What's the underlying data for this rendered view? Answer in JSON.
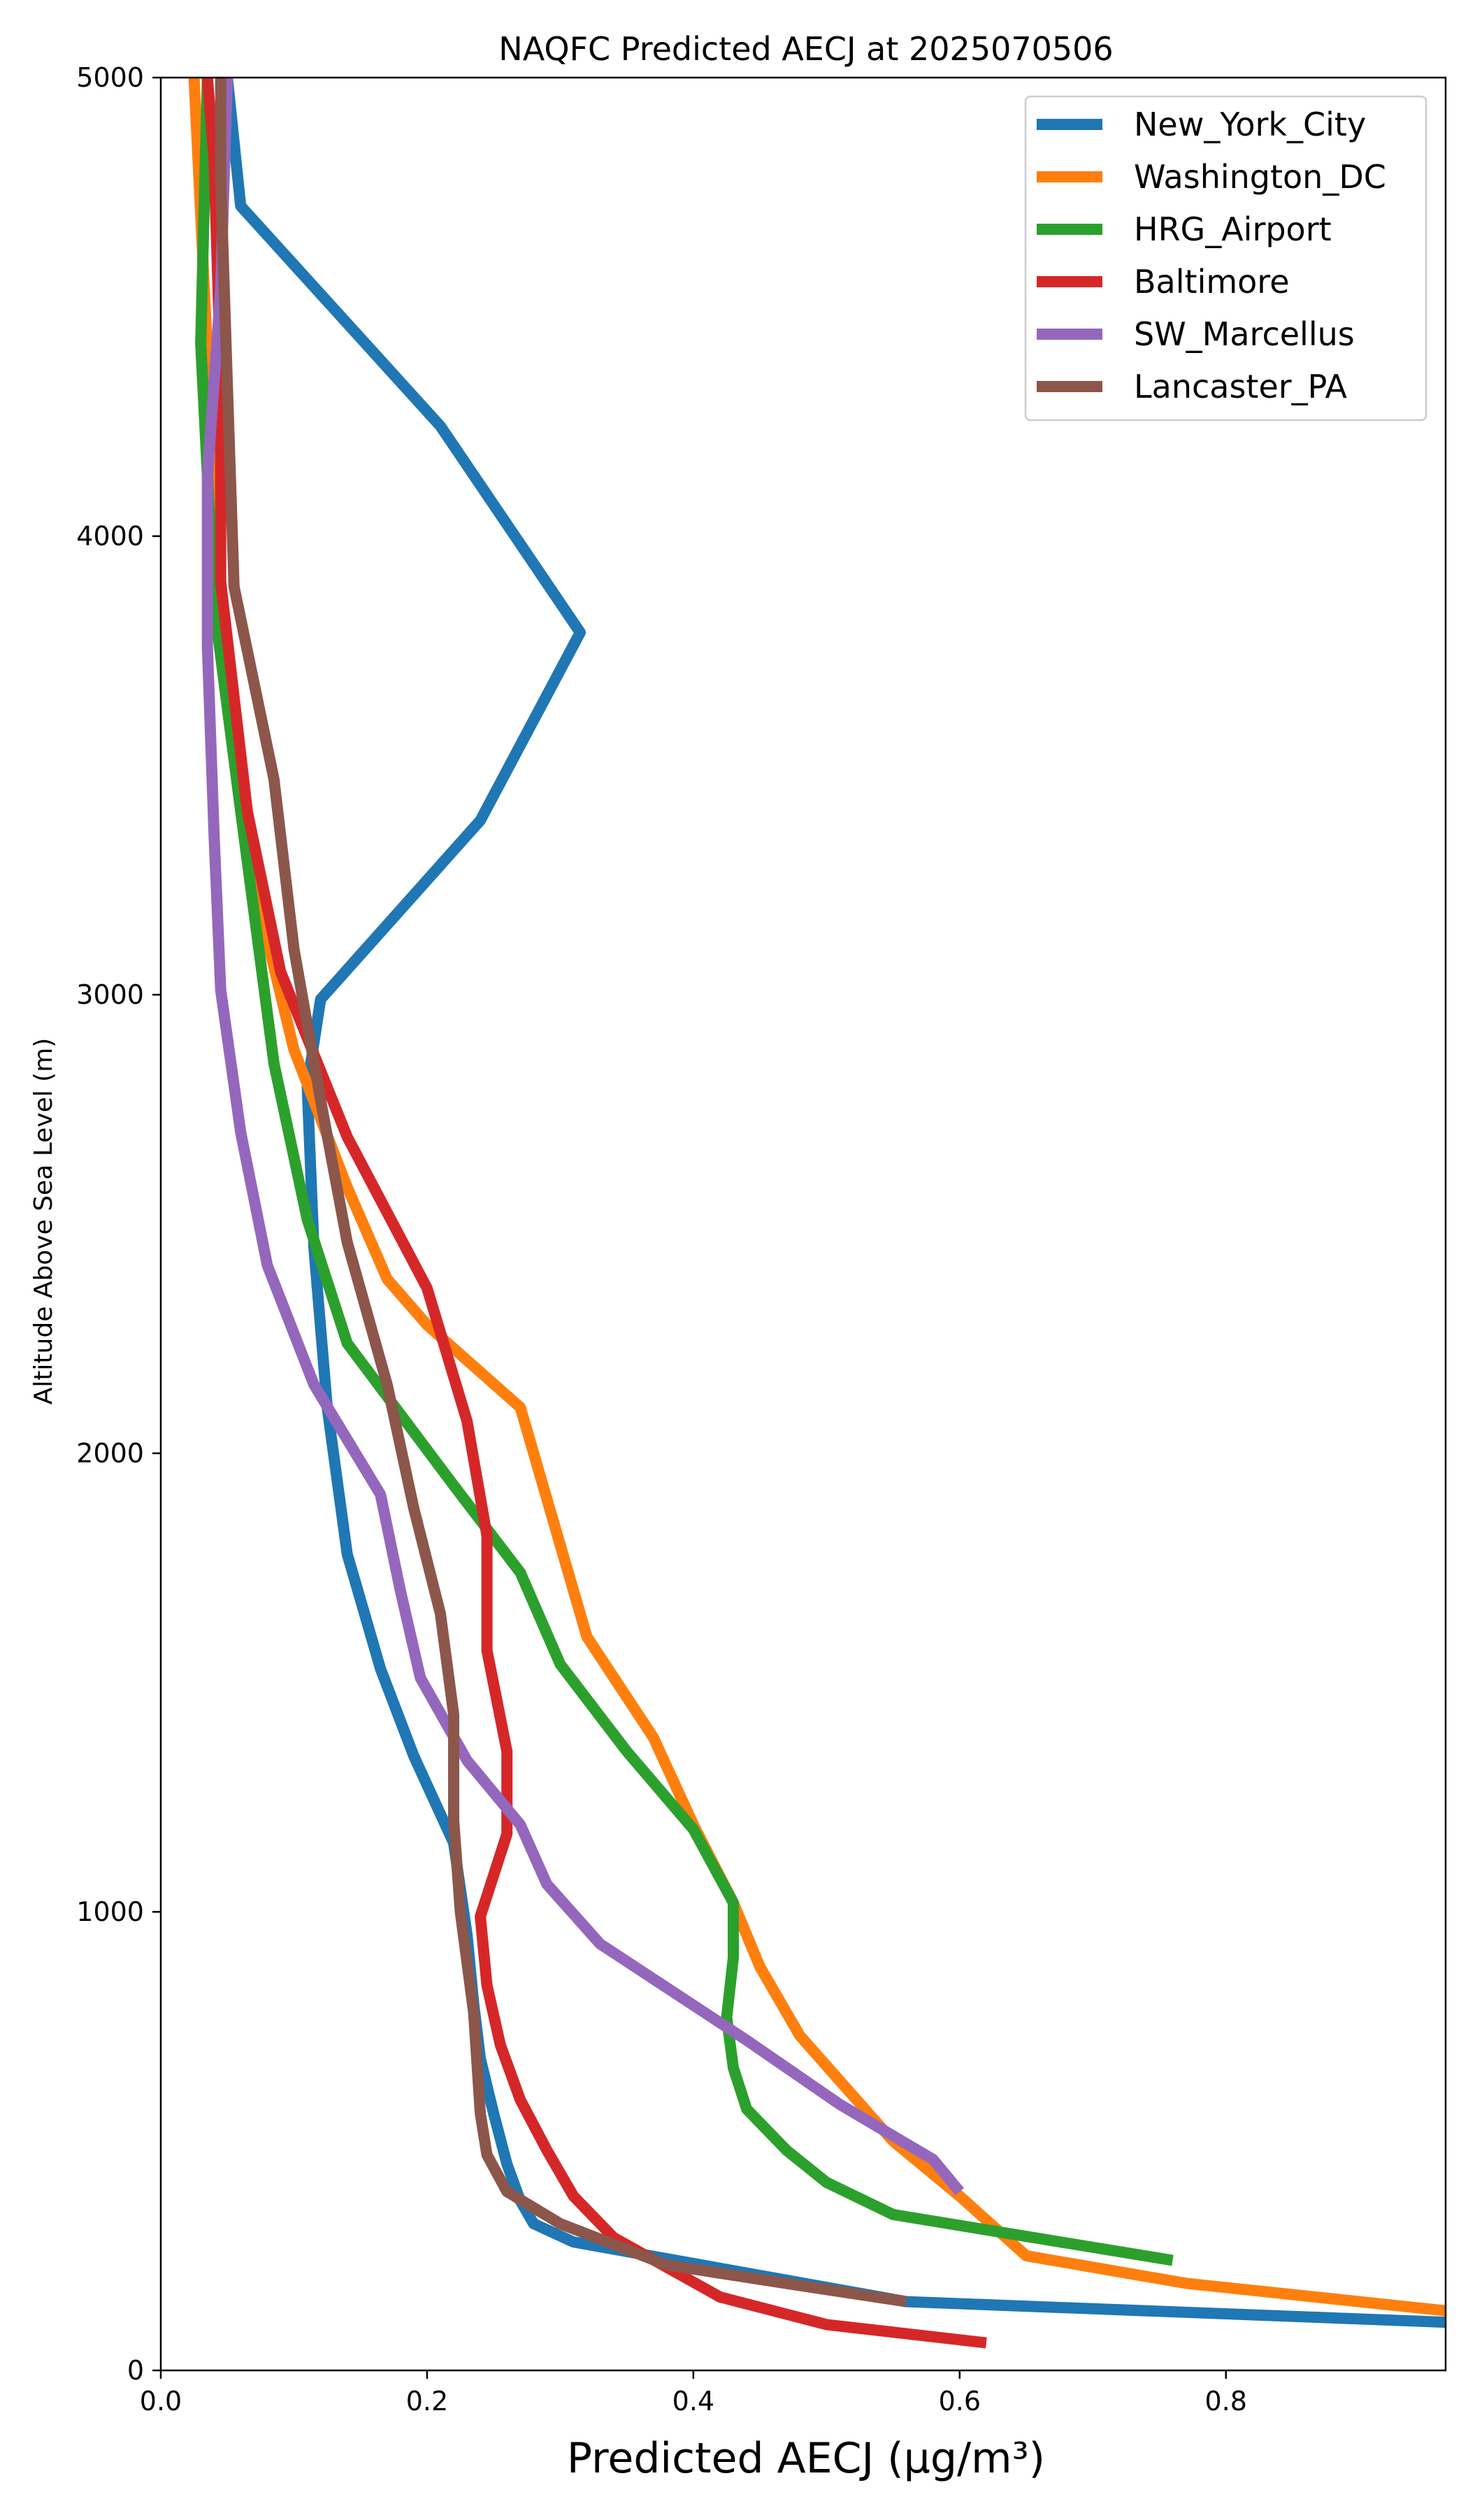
{
  "chart_data": {
    "type": "line",
    "title": "NAQFC Predicted AECJ at 2025070506",
    "xlabel": "Predicted AECJ (μg/m³)",
    "ylabel": "Altitude Above Sea Level (m)",
    "xlim": [
      0.0,
      0.965
    ],
    "ylim": [
      0,
      5000
    ],
    "x_ticks": [
      "0.0",
      "0.2",
      "0.4",
      "0.6",
      "0.8"
    ],
    "y_ticks": [
      "0",
      "1000",
      "2000",
      "3000",
      "4000",
      "5000"
    ],
    "grid": false,
    "legend_position": "top-right",
    "series": [
      {
        "name": "New_York_City",
        "color": "#1f77b4",
        "points": [
          [
            0.965,
            105
          ],
          [
            0.56,
            150
          ],
          [
            0.31,
            280
          ],
          [
            0.28,
            320
          ],
          [
            0.27,
            370
          ],
          [
            0.26,
            450
          ],
          [
            0.25,
            560
          ],
          [
            0.24,
            680
          ],
          [
            0.235,
            800
          ],
          [
            0.23,
            950
          ],
          [
            0.22,
            1150
          ],
          [
            0.19,
            1340
          ],
          [
            0.165,
            1530
          ],
          [
            0.14,
            1780
          ],
          [
            0.125,
            2100
          ],
          [
            0.115,
            2450
          ],
          [
            0.11,
            2800
          ],
          [
            0.12,
            2990
          ],
          [
            0.24,
            3380
          ],
          [
            0.315,
            3790
          ],
          [
            0.21,
            4240
          ],
          [
            0.06,
            4720
          ],
          [
            0.05,
            5000
          ]
        ]
      },
      {
        "name": "Washington_DC",
        "color": "#ff7f0e",
        "points": [
          [
            0.965,
            130
          ],
          [
            0.77,
            190
          ],
          [
            0.65,
            250
          ],
          [
            0.6,
            380
          ],
          [
            0.55,
            500
          ],
          [
            0.48,
            730
          ],
          [
            0.45,
            880
          ],
          [
            0.43,
            1020
          ],
          [
            0.4,
            1190
          ],
          [
            0.37,
            1380
          ],
          [
            0.32,
            1600
          ],
          [
            0.27,
            2100
          ],
          [
            0.2,
            2280
          ],
          [
            0.17,
            2380
          ],
          [
            0.14,
            2580
          ],
          [
            0.1,
            2880
          ],
          [
            0.07,
            3240
          ],
          [
            0.045,
            3800
          ],
          [
            0.035,
            4400
          ],
          [
            0.025,
            5000
          ]
        ]
      },
      {
        "name": "HRG_Airport",
        "color": "#2ca02c",
        "points": [
          [
            0.76,
            240
          ],
          [
            0.55,
            340
          ],
          [
            0.5,
            410
          ],
          [
            0.47,
            480
          ],
          [
            0.44,
            570
          ],
          [
            0.43,
            660
          ],
          [
            0.425,
            770
          ],
          [
            0.43,
            900
          ],
          [
            0.43,
            1020
          ],
          [
            0.4,
            1180
          ],
          [
            0.35,
            1350
          ],
          [
            0.3,
            1540
          ],
          [
            0.27,
            1740
          ],
          [
            0.22,
            1930
          ],
          [
            0.14,
            2240
          ],
          [
            0.11,
            2510
          ],
          [
            0.085,
            2850
          ],
          [
            0.06,
            3400
          ],
          [
            0.04,
            3850
          ],
          [
            0.03,
            4420
          ],
          [
            0.035,
            5000
          ]
        ]
      },
      {
        "name": "Baltimore",
        "color": "#d62728",
        "points": [
          [
            0.62,
            60
          ],
          [
            0.5,
            100
          ],
          [
            0.42,
            160
          ],
          [
            0.34,
            290
          ],
          [
            0.31,
            380
          ],
          [
            0.29,
            480
          ],
          [
            0.27,
            590
          ],
          [
            0.255,
            710
          ],
          [
            0.245,
            840
          ],
          [
            0.24,
            990
          ],
          [
            0.26,
            1170
          ],
          [
            0.26,
            1350
          ],
          [
            0.245,
            1570
          ],
          [
            0.245,
            1820
          ],
          [
            0.23,
            2070
          ],
          [
            0.2,
            2360
          ],
          [
            0.14,
            2690
          ],
          [
            0.09,
            3050
          ],
          [
            0.065,
            3400
          ],
          [
            0.045,
            3900
          ],
          [
            0.045,
            4350
          ],
          [
            0.04,
            4820
          ],
          [
            0.035,
            5000
          ]
        ]
      },
      {
        "name": "SW_Marcellus",
        "color": "#9467bd",
        "points": [
          [
            0.6,
            390
          ],
          [
            0.58,
            460
          ],
          [
            0.51,
            580
          ],
          [
            0.44,
            720
          ],
          [
            0.33,
            930
          ],
          [
            0.29,
            1060
          ],
          [
            0.27,
            1190
          ],
          [
            0.23,
            1330
          ],
          [
            0.195,
            1510
          ],
          [
            0.18,
            1700
          ],
          [
            0.165,
            1910
          ],
          [
            0.115,
            2150
          ],
          [
            0.08,
            2410
          ],
          [
            0.06,
            2700
          ],
          [
            0.045,
            3010
          ],
          [
            0.04,
            3350
          ],
          [
            0.035,
            3760
          ],
          [
            0.035,
            4130
          ],
          [
            0.045,
            4540
          ],
          [
            0.05,
            5000
          ]
        ]
      },
      {
        "name": "Lancaster_PA",
        "color": "#8c564b",
        "points": [
          [
            0.56,
            150
          ],
          [
            0.48,
            185
          ],
          [
            0.38,
            230
          ],
          [
            0.3,
            320
          ],
          [
            0.26,
            390
          ],
          [
            0.245,
            470
          ],
          [
            0.24,
            560
          ],
          [
            0.235,
            780
          ],
          [
            0.225,
            1000
          ],
          [
            0.22,
            1200
          ],
          [
            0.22,
            1430
          ],
          [
            0.21,
            1650
          ],
          [
            0.19,
            1880
          ],
          [
            0.17,
            2150
          ],
          [
            0.14,
            2460
          ],
          [
            0.12,
            2770
          ],
          [
            0.1,
            3100
          ],
          [
            0.085,
            3470
          ],
          [
            0.055,
            3890
          ],
          [
            0.05,
            4330
          ],
          [
            0.045,
            4780
          ],
          [
            0.045,
            5000
          ]
        ]
      }
    ]
  }
}
